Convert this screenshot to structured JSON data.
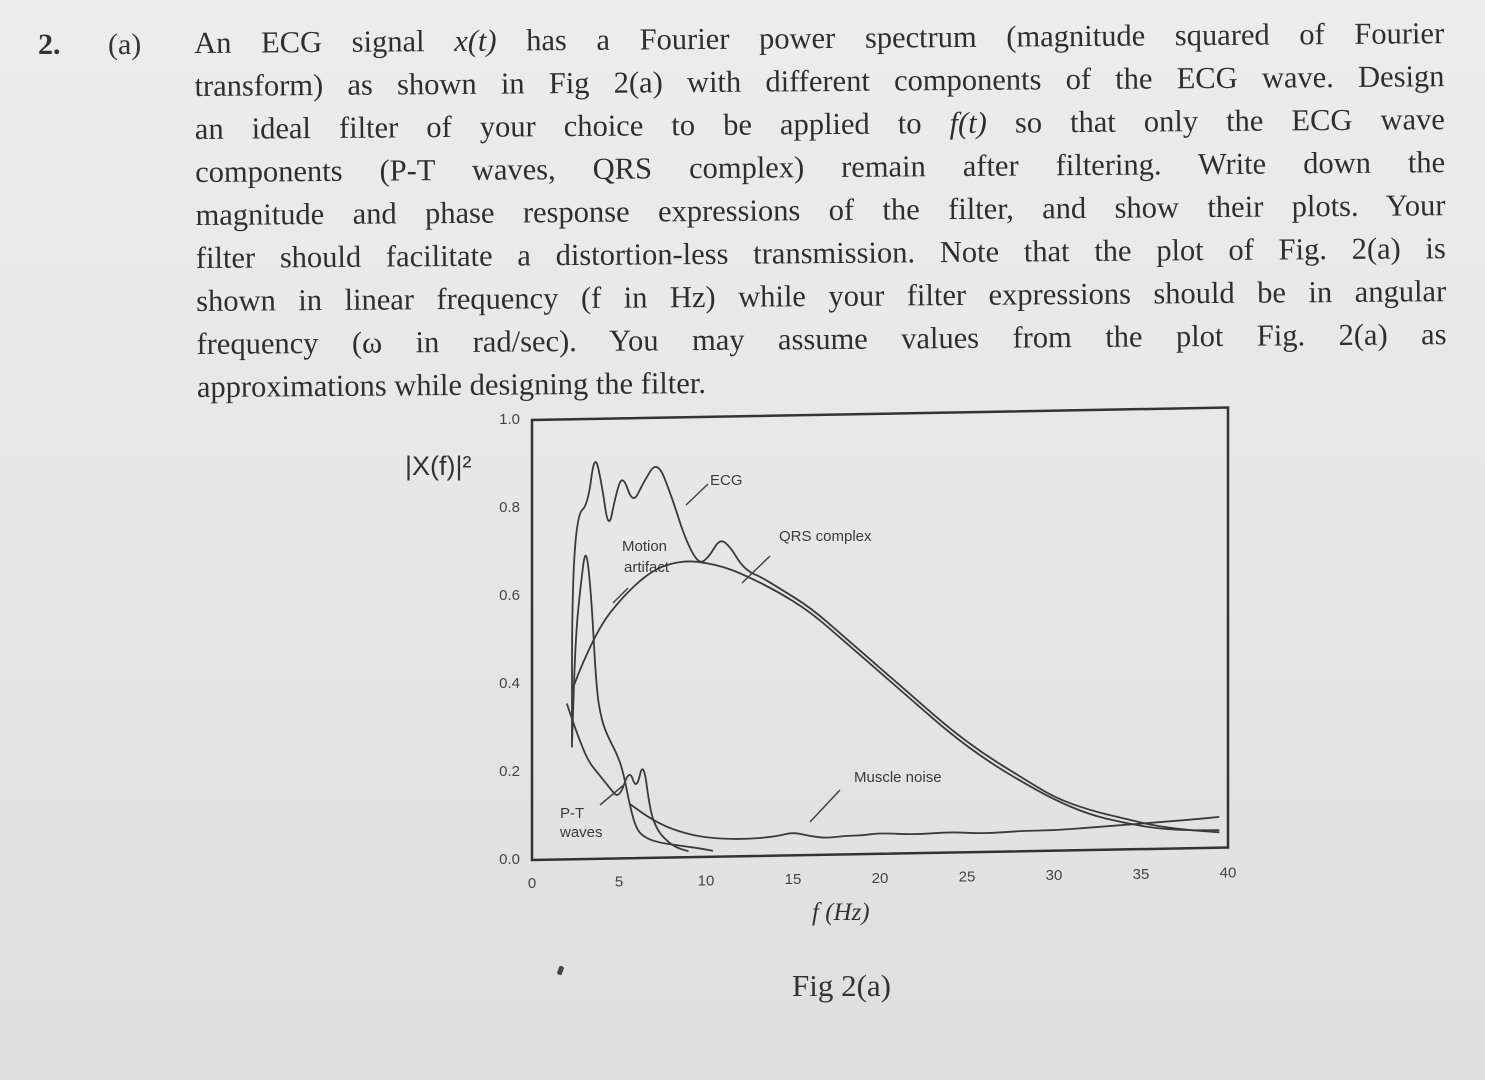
{
  "question": {
    "number": "2.",
    "part": "(a)",
    "line_1_a": "An ECG signal",
    "signal_symbol": "x(t)",
    "line_1_b": "has a Fourier power spectrum (magnitude squared of Fourier",
    "line_2": "transform) as shown in Fig 2(a) with different components of the ECG wave. Design",
    "line_3_a": "an ideal filter of your choice to be applied to",
    "input_symbol": "f(t)",
    "line_3_b": "so that only the ECG wave",
    "line_4": "components (P-T waves, QRS complex) remain after filtering. Write down the",
    "line_5": "magnitude and phase response expressions of the filter, and show their plots. Your",
    "line_6": "filter should facilitate a distortion-less transmission. Note that the plot of Fig. 2(a) is",
    "line_7": "shown in linear frequency (f in Hz) while your filter expressions should be in angular",
    "line_8": "frequency (ω in rad/sec). You may assume values from the plot Fig. 2(a) as",
    "line_9": "approximations while designing the filter."
  },
  "figure": {
    "caption": "Fig 2(a)"
  },
  "chart_data": {
    "type": "line",
    "ylabel": "|X(f)|²",
    "xlabel": "f (Hz)",
    "xlim": [
      0,
      40
    ],
    "ylim": [
      0,
      1.0
    ],
    "x_ticks": [
      "0",
      "5",
      "10",
      "15",
      "20",
      "25",
      "30",
      "35",
      "40"
    ],
    "y_ticks": [
      "0.0",
      "0.2",
      "0.4",
      "0.6",
      "0.8",
      "1.0"
    ],
    "annotations": [
      "ECG",
      "QRS complex",
      "Motion",
      "artifact",
      "P-T",
      "waves",
      "Muscle noise"
    ],
    "series": [
      {
        "name": "ECG",
        "x": [
          2.3,
          2.3,
          2.6,
          3.2,
          3.6,
          4.0,
          4.4,
          4.8,
          5.2,
          5.8,
          6.4,
          7.2,
          8.0,
          8.8,
          9.6,
          10.2,
          10.8,
          11.4,
          12.0,
          12.6,
          13.2,
          14.0,
          16.0,
          18.0,
          20.0,
          22.0,
          24.0,
          26.0,
          28.0,
          30.0,
          32.0,
          34.0,
          36.0,
          38.0,
          39.5
        ],
        "y": [
          0.25,
          0.6,
          0.78,
          0.8,
          0.92,
          0.85,
          0.74,
          0.82,
          0.87,
          0.8,
          0.85,
          0.9,
          0.82,
          0.72,
          0.66,
          0.68,
          0.72,
          0.7,
          0.66,
          0.64,
          0.63,
          0.61,
          0.56,
          0.49,
          0.42,
          0.35,
          0.28,
          0.22,
          0.17,
          0.12,
          0.09,
          0.07,
          0.05,
          0.04,
          0.035
        ]
      },
      {
        "name": "QRS complex",
        "x": [
          2.3,
          3.0,
          4.0,
          5.0,
          6.0,
          7.0,
          8.0,
          9.0,
          10.0,
          11.0,
          12.0,
          14.0,
          16.0,
          18.0,
          20.0,
          22.0,
          24.0,
          26.0,
          28.0,
          30.0,
          32.0,
          34.0,
          36.0,
          38.0,
          39.5
        ],
        "y": [
          0.38,
          0.45,
          0.53,
          0.58,
          0.62,
          0.65,
          0.665,
          0.67,
          0.665,
          0.655,
          0.64,
          0.6,
          0.55,
          0.48,
          0.41,
          0.34,
          0.27,
          0.21,
          0.16,
          0.115,
          0.08,
          0.06,
          0.045,
          0.04,
          0.04
        ]
      },
      {
        "name": "Motion artifact",
        "x": [
          2.3,
          2.5,
          2.8,
          3.1,
          3.4,
          3.7,
          4.0,
          4.4,
          4.8,
          5.2,
          5.6,
          6.0,
          6.6,
          7.4,
          8.2,
          9.0,
          9.8,
          10.4
        ],
        "y": [
          0.26,
          0.5,
          0.62,
          0.71,
          0.6,
          0.38,
          0.31,
          0.27,
          0.24,
          0.2,
          0.12,
          0.06,
          0.04,
          0.03,
          0.025,
          0.02,
          0.015,
          0.01
        ]
      },
      {
        "name": "P-T waves",
        "x": [
          2.0,
          2.6,
          3.2,
          3.8,
          4.4,
          5.0,
          5.6,
          6.0,
          6.4,
          6.8,
          7.2,
          7.6,
          8.2,
          9.0
        ],
        "y": [
          0.35,
          0.28,
          0.22,
          0.19,
          0.16,
          0.13,
          0.2,
          0.15,
          0.22,
          0.1,
          0.06,
          0.04,
          0.02,
          0.01
        ]
      },
      {
        "name": "Muscle noise",
        "x": [
          5.6,
          7.0,
          8.4,
          10.0,
          12.0,
          14.0,
          15.0,
          16.0,
          17.0,
          18.0,
          19.0,
          20.0,
          22.0,
          24.0,
          26.0,
          28.0,
          30.0,
          32.0,
          34.0,
          36.0,
          38.0,
          39.5
        ],
        "y": [
          0.12,
          0.08,
          0.055,
          0.04,
          0.035,
          0.04,
          0.05,
          0.04,
          0.035,
          0.04,
          0.04,
          0.045,
          0.04,
          0.045,
          0.04,
          0.045,
          0.045,
          0.05,
          0.055,
          0.06,
          0.065,
          0.07
        ]
      }
    ]
  }
}
